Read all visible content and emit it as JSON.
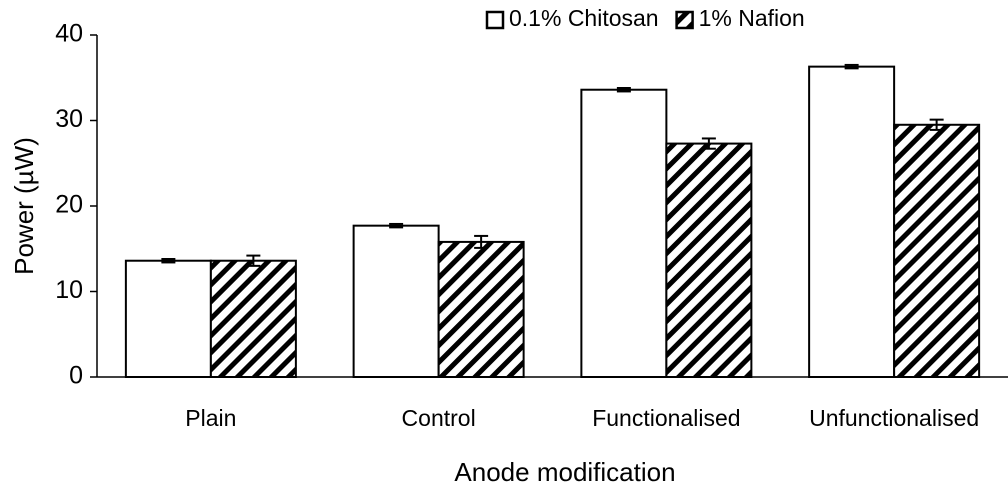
{
  "chart_data": {
    "type": "bar",
    "xlabel": "Anode modification",
    "ylabel": "Power (µW)",
    "categories": [
      "Plain",
      "Control",
      "Functionalised",
      "Unfunctionalised"
    ],
    "series": [
      {
        "name": "0.1% Chitosan",
        "color": "#ffffff",
        "values": [
          13.6,
          17.7,
          33.6,
          36.3
        ],
        "errors": [
          0.2,
          0.2,
          0.2,
          0.2
        ]
      },
      {
        "name": "1% Nafion",
        "color": "#000000",
        "pattern": "hatch",
        "values": [
          13.6,
          15.8,
          27.3,
          29.5
        ],
        "errors": [
          0.6,
          0.7,
          0.6,
          0.6
        ]
      }
    ],
    "ylim": [
      0,
      40
    ],
    "yticks": [
      0,
      10,
      20,
      30,
      40
    ],
    "grid": false,
    "legend": "top"
  }
}
